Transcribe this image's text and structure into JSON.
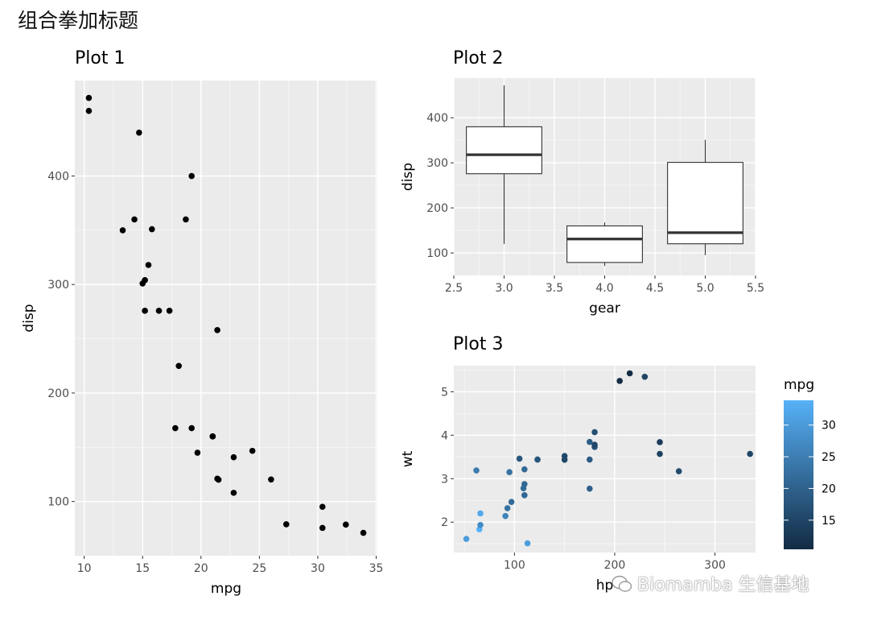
{
  "page": {
    "title": "组合拳加标题"
  },
  "watermark": {
    "text": "Biomamba 生信基地",
    "icon": "wechat-icon"
  },
  "chart_data": [
    {
      "type": "scatter",
      "title": "Plot 1",
      "xlabel": "mpg",
      "ylabel": "disp",
      "xlim": [
        9.2,
        35.1
      ],
      "ylim": [
        50,
        488
      ],
      "xticks": [
        10,
        15,
        20,
        25,
        30,
        35
      ],
      "yticks": [
        100,
        200,
        300,
        400
      ],
      "color": "#000000",
      "points": [
        [
          21.0,
          160
        ],
        [
          21.0,
          160
        ],
        [
          22.8,
          108
        ],
        [
          21.4,
          258
        ],
        [
          18.7,
          360
        ],
        [
          18.1,
          225
        ],
        [
          14.3,
          360
        ],
        [
          24.4,
          146.7
        ],
        [
          22.8,
          140.8
        ],
        [
          19.2,
          167.6
        ],
        [
          17.8,
          167.6
        ],
        [
          16.4,
          275.8
        ],
        [
          17.3,
          275.8
        ],
        [
          15.2,
          275.8
        ],
        [
          10.4,
          472
        ],
        [
          10.4,
          460
        ],
        [
          14.7,
          440
        ],
        [
          32.4,
          78.7
        ],
        [
          30.4,
          75.7
        ],
        [
          33.9,
          71.1
        ],
        [
          21.5,
          120.1
        ],
        [
          15.5,
          318
        ],
        [
          15.2,
          304
        ],
        [
          13.3,
          350
        ],
        [
          19.2,
          400
        ],
        [
          27.3,
          79
        ],
        [
          26.0,
          120.3
        ],
        [
          30.4,
          95.1
        ],
        [
          15.8,
          351
        ],
        [
          19.7,
          145
        ],
        [
          15.0,
          301
        ],
        [
          21.4,
          121
        ]
      ]
    },
    {
      "type": "box",
      "title": "Plot 2",
      "xlabel": "gear",
      "ylabel": "disp",
      "xlim": [
        2.5,
        5.5
      ],
      "ylim": [
        50,
        488
      ],
      "xticks": [
        "2.5",
        "3.0",
        "3.5",
        "4.0",
        "4.5",
        "5.0",
        "5.5"
      ],
      "yticks": [
        100,
        200,
        300,
        400
      ],
      "boxes": [
        {
          "x": 3,
          "min": 120.1,
          "q1": 275.8,
          "median": 318,
          "q3": 380,
          "max": 472
        },
        {
          "x": 4,
          "min": 71.1,
          "q1": 78.85,
          "median": 130.9,
          "q3": 160,
          "max": 167.6
        },
        {
          "x": 5,
          "min": 95.1,
          "q1": 120.3,
          "median": 145,
          "q3": 301,
          "max": 351
        }
      ]
    },
    {
      "type": "scatter",
      "title": "Plot 3",
      "xlabel": "hp",
      "ylabel": "wt",
      "xlim": [
        39.5,
        340.5
      ],
      "ylim": [
        1.3,
        5.6
      ],
      "xticks": [
        100,
        200,
        300
      ],
      "yticks": [
        2,
        3,
        4,
        5
      ],
      "legend": {
        "title": "mpg",
        "ticks": [
          15,
          20,
          25,
          30
        ],
        "range": [
          10.4,
          33.9
        ],
        "low_color": "#132B43",
        "high_color": "#56B1F7"
      },
      "points": [
        [
          110,
          2.62,
          21.0
        ],
        [
          110,
          2.875,
          21.0
        ],
        [
          93,
          2.32,
          22.8
        ],
        [
          110,
          3.215,
          21.4
        ],
        [
          175,
          3.44,
          18.7
        ],
        [
          105,
          3.46,
          18.1
        ],
        [
          245,
          3.57,
          14.3
        ],
        [
          62,
          3.19,
          24.4
        ],
        [
          95,
          3.15,
          22.8
        ],
        [
          123,
          3.44,
          19.2
        ],
        [
          123,
          3.44,
          17.8
        ],
        [
          180,
          4.07,
          16.4
        ],
        [
          180,
          3.73,
          17.3
        ],
        [
          180,
          3.78,
          15.2
        ],
        [
          205,
          5.25,
          10.4
        ],
        [
          215,
          5.424,
          10.4
        ],
        [
          230,
          5.345,
          14.7
        ],
        [
          66,
          2.2,
          32.4
        ],
        [
          52,
          1.615,
          30.4
        ],
        [
          65,
          1.835,
          33.9
        ],
        [
          97,
          2.465,
          21.5
        ],
        [
          150,
          3.52,
          15.5
        ],
        [
          150,
          3.435,
          15.2
        ],
        [
          245,
          3.84,
          13.3
        ],
        [
          175,
          3.845,
          19.2
        ],
        [
          66,
          1.935,
          27.3
        ],
        [
          91,
          2.14,
          26.0
        ],
        [
          113,
          1.513,
          30.4
        ],
        [
          264,
          3.17,
          15.8
        ],
        [
          175,
          2.77,
          19.7
        ],
        [
          335,
          3.57,
          15.0
        ],
        [
          109,
          2.78,
          21.4
        ]
      ]
    }
  ]
}
